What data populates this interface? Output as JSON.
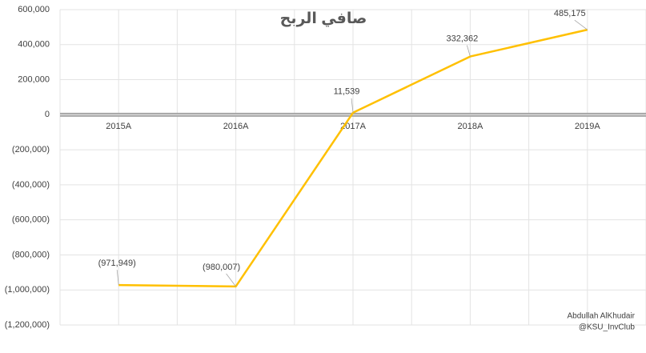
{
  "chart_data": {
    "type": "line",
    "title": "صافي الربح",
    "categories": [
      "2015A",
      "2016A",
      "2017A",
      "2018A",
      "2019A"
    ],
    "values": [
      -971949,
      -980007,
      11539,
      332362,
      485175
    ],
    "value_labels": [
      "(971,949)",
      "(980,007)",
      "11,539",
      "332,362",
      "485,175"
    ],
    "color": "#ffc000",
    "ylim": [
      -1200000,
      600000
    ],
    "yticks": [
      {
        "value": -1200000,
        "label": "(1,200,000)"
      },
      {
        "value": -1000000,
        "label": "(1,000,000)"
      },
      {
        "value": -800000,
        "label": "(800,000)"
      },
      {
        "value": -600000,
        "label": "(600,000)"
      },
      {
        "value": -400000,
        "label": "(400,000)"
      },
      {
        "value": -200000,
        "label": "(200,000)"
      },
      0,
      {
        "value": 200000,
        "label": "200,000"
      },
      {
        "value": 400000,
        "label": "400,000"
      },
      {
        "value": 600000,
        "label": "600,000"
      }
    ],
    "grid": true,
    "annotations": [
      "Abdullah AlKhudair",
      "@KSU_InvClub"
    ]
  }
}
